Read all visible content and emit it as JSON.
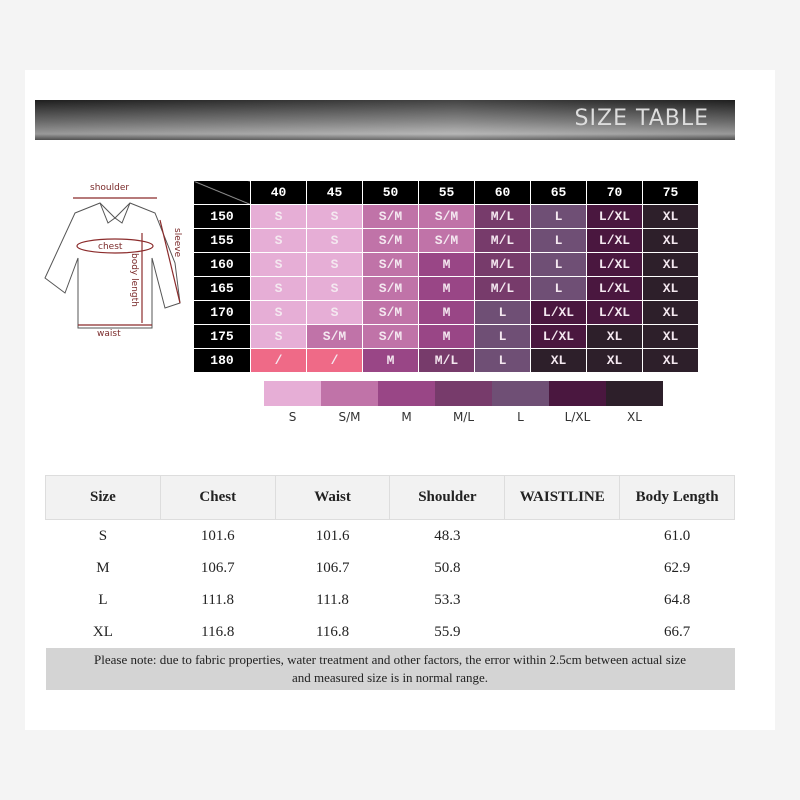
{
  "header": {
    "title": "SIZE TABLE"
  },
  "diagram": {
    "labels": [
      "shoulder",
      "chest",
      "sleeve",
      "body length",
      "waist"
    ]
  },
  "chart_grid": {
    "columns": [
      "40",
      "45",
      "50",
      "55",
      "60",
      "65",
      "70",
      "75"
    ],
    "rows": [
      {
        "height": "150",
        "sizes": [
          "S",
          "S",
          "S/M",
          "S/M",
          "M/L",
          "L",
          "L/XL",
          "XL"
        ]
      },
      {
        "height": "155",
        "sizes": [
          "S",
          "S",
          "S/M",
          "S/M",
          "M/L",
          "L",
          "L/XL",
          "XL"
        ]
      },
      {
        "height": "160",
        "sizes": [
          "S",
          "S",
          "S/M",
          "M",
          "M/L",
          "L",
          "L/XL",
          "XL"
        ]
      },
      {
        "height": "165",
        "sizes": [
          "S",
          "S",
          "S/M",
          "M",
          "M/L",
          "L",
          "L/XL",
          "XL"
        ]
      },
      {
        "height": "170",
        "sizes": [
          "S",
          "S",
          "S/M",
          "M",
          "L",
          "L/XL",
          "L/XL",
          "XL"
        ]
      },
      {
        "height": "175",
        "sizes": [
          "S",
          "S/M",
          "S/M",
          "M",
          "L",
          "L/XL",
          "XL",
          "XL"
        ]
      },
      {
        "height": "180",
        "sizes": [
          "/",
          "/",
          "M",
          "M/L",
          "L",
          "XL",
          "XL",
          "XL"
        ]
      }
    ]
  },
  "legend": [
    {
      "label": "S",
      "color": "#e6aed6"
    },
    {
      "label": "S/M",
      "color": "#c073a8"
    },
    {
      "label": "M",
      "color": "#994686"
    },
    {
      "label": "M/L",
      "color": "#773b6b"
    },
    {
      "label": "L",
      "color": "#6f4f75"
    },
    {
      "label": "L/XL",
      "color": "#4a173f"
    },
    {
      "label": "XL",
      "color": "#2d1f2a"
    }
  ],
  "na_color": "#ef6a87",
  "measure_table": {
    "headers": [
      "Size",
      "Chest",
      "Waist",
      "Shoulder",
      "WAISTLINE",
      "Body Length"
    ],
    "rows": [
      [
        "S",
        "101.6",
        "101.6",
        "48.3",
        "",
        "61.0"
      ],
      [
        "M",
        "106.7",
        "106.7",
        "50.8",
        "",
        "62.9"
      ],
      [
        "L",
        "111.8",
        "111.8",
        "53.3",
        "",
        "64.8"
      ],
      [
        "XL",
        "116.8",
        "116.8",
        "55.9",
        "",
        "66.7"
      ]
    ],
    "note_line1": "Please note: due to fabric properties, water treatment and other factors, the error within 2.5cm between actual size",
    "note_line2": "and measured size is in normal range."
  }
}
